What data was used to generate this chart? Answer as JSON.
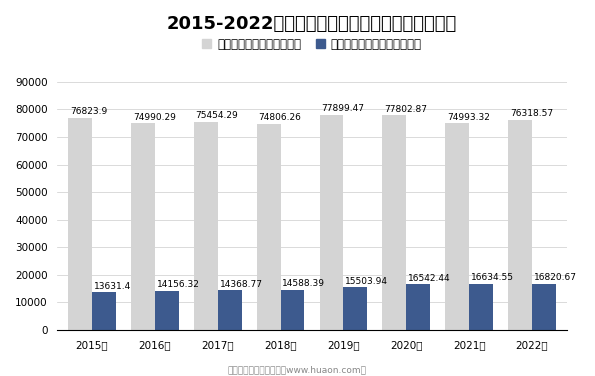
{
  "title": "2015-2022年江苏各房屋建筑竣工面积及竣工价值",
  "years": [
    "2015年",
    "2016年",
    "2017年",
    "2018年",
    "2019年",
    "2020年",
    "2021年",
    "2022年"
  ],
  "area_values": [
    76823.9,
    74990.29,
    75454.29,
    74806.26,
    77899.47,
    77802.87,
    74993.32,
    76318.57
  ],
  "value_values": [
    13631.4,
    14156.32,
    14368.77,
    14588.39,
    15503.94,
    16542.44,
    16634.55,
    16820.67
  ],
  "area_color": "#d4d4d4",
  "value_color": "#3d5a8e",
  "legend_area": "房屋建筑竣工面积（万㎡）",
  "legend_value": "房屋建筑业竣工价值（亿元）",
  "ylim": [
    0,
    90000
  ],
  "yticks": [
    0,
    10000,
    20000,
    30000,
    40000,
    50000,
    60000,
    70000,
    80000,
    90000
  ],
  "bar_width": 0.38,
  "title_fontsize": 13,
  "label_fontsize": 6.5,
  "legend_fontsize": 8.5,
  "tick_fontsize": 7.5,
  "watermark": "制图：华经产业研究院（www.huaon.com）",
  "bg_color": "#ffffff",
  "grid_color": "#cccccc"
}
